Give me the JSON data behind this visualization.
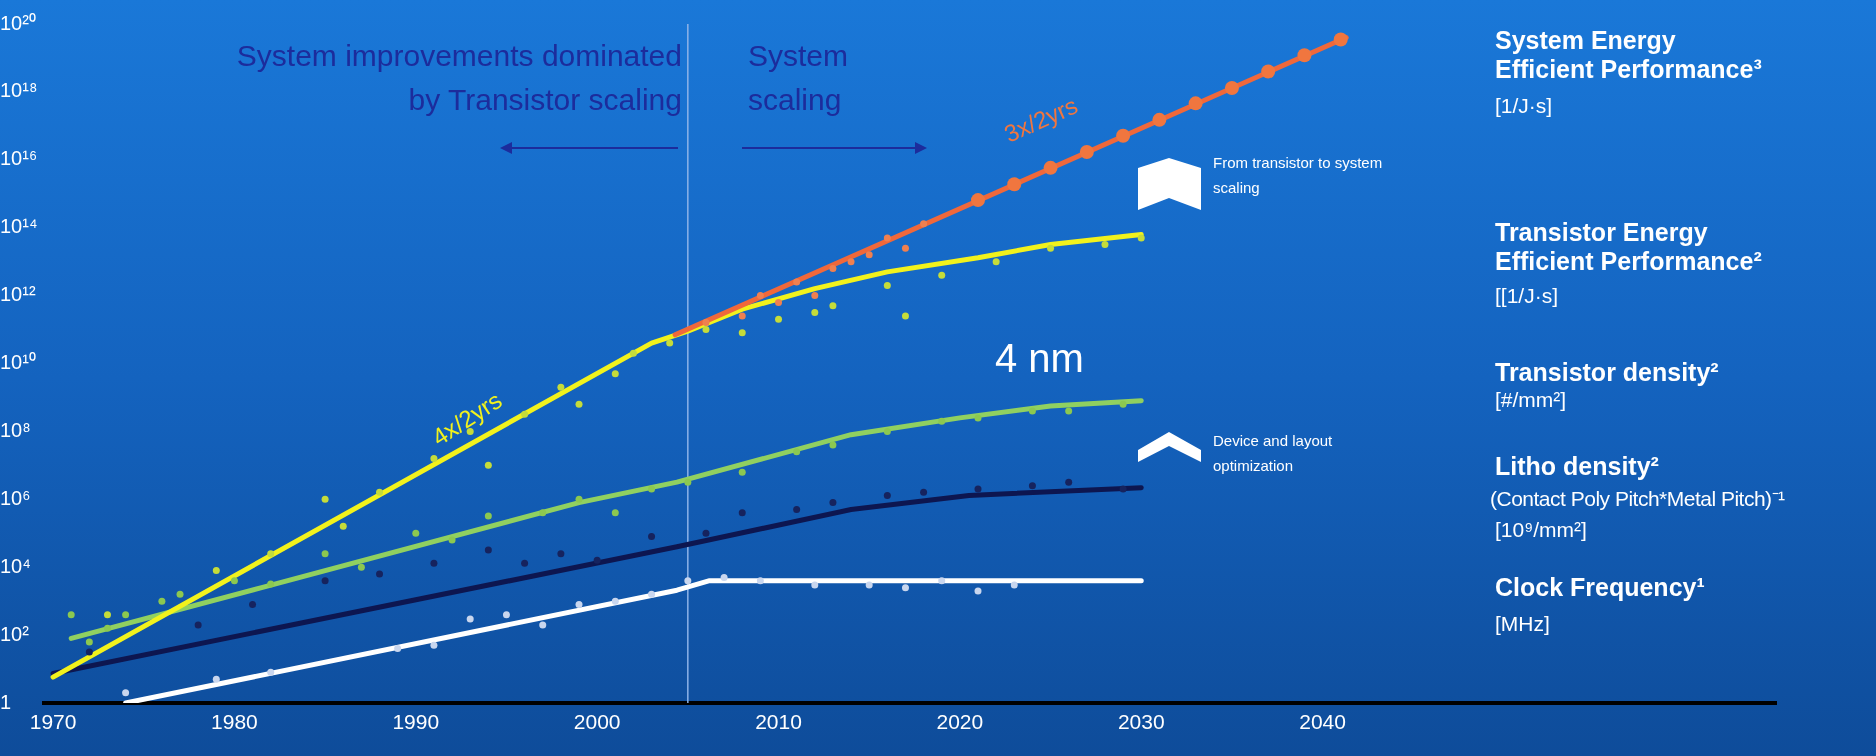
{
  "chart_data": {
    "type": "line",
    "log": "y",
    "xlim": [
      1969.5,
      2065
    ],
    "xticks": [
      1970,
      1980,
      1990,
      2000,
      2010,
      2020,
      2030,
      2040
    ],
    "ylim": [
      1,
      1e+20
    ],
    "yticks": [
      1,
      {
        "value": 100.0,
        "label": "10²"
      },
      {
        "value": 10000.0,
        "label": "10⁴"
      },
      {
        "value": 1000000.0,
        "label": "10⁶"
      },
      {
        "value": 100000000.0,
        "label": "10⁸"
      },
      {
        "value": 10000000000.0,
        "label": "10¹⁰"
      },
      {
        "value": 1000000000000.0,
        "label": "10¹²"
      },
      {
        "value": 100000000000000.0,
        "label": "10¹⁴"
      },
      {
        "value": 1e+16,
        "label": "10¹⁶"
      },
      {
        "value": 1e+18,
        "label": "10¹⁸"
      },
      {
        "value": 1e+20,
        "label": "10²⁰"
      }
    ],
    "series": [
      {
        "type": "scatter",
        "marker": "circle",
        "color": "#c5dc3a",
        "x": [
          1973,
          1979,
          1982,
          1985,
          1986,
          1988,
          1991,
          1993,
          1994,
          1996,
          1998,
          1999,
          2001,
          2002,
          2004,
          2006,
          2008,
          2010,
          2012,
          2013,
          2016,
          2017,
          2019,
          2022,
          2025,
          2028,
          2030
        ],
        "values": [
          400,
          8000,
          25000,
          1000000.0,
          160000.0,
          1600000.0,
          16000000.0,
          100000000.0,
          10000000.0,
          320000000.0,
          2000000000.0,
          630000000.0,
          5000000000.0,
          20000000000.0,
          40000000000.0,
          100000000000.0,
          80000000000.0,
          200000000000.0,
          320000000000.0,
          500000000000.0,
          2000000000000.0,
          250000000000.0,
          4000000000000.0,
          10000000000000.0,
          25000000000000.0,
          32000000000000.0,
          50000000000000.0
        ]
      },
      {
        "type": "scatter",
        "marker": "circle",
        "color": "#f08050",
        "x": [
          2006,
          2008,
          2009,
          2010,
          2011,
          2012,
          2013,
          2014,
          2015,
          2016,
          2017,
          2018
        ],
        "values": [
          160000000000.0,
          250000000000.0,
          1000000000000.0,
          630000000000.0,
          2500000000000.0,
          1000000000000.0,
          6300000000000.0,
          10000000000000.0,
          16000000000000.0,
          50000000000000.0,
          25000000000000.0,
          130000000000000.0
        ]
      },
      {
        "type": "scatter",
        "marker": "circle",
        "color": "#8cc850",
        "x": [
          1971,
          1972,
          1973,
          1974,
          1976,
          1977,
          1980,
          1982,
          1985,
          1987,
          1990,
          1992,
          1994,
          1997,
          1999,
          2001,
          2003,
          2005,
          2008,
          2011,
          2013,
          2016,
          2019,
          2021,
          2024,
          2026,
          2029
        ],
        "values": [
          400,
          63,
          160,
          400,
          1000,
          1600,
          4000,
          3200,
          25000,
          10000,
          100000.0,
          63000,
          320000.0,
          400000.0,
          1000000.0,
          400000.0,
          2000000.0,
          3200000.0,
          6300000.0,
          25000000.0,
          40000000.0,
          100000000.0,
          200000000.0,
          250000000.0,
          400000000.0,
          400000000.0,
          630000000.0
        ]
      },
      {
        "type": "scatter",
        "marker": "circle",
        "color": "#16235e",
        "x": [
          1972,
          1978,
          1981,
          1985,
          1988,
          1991,
          1994,
          1996,
          1998,
          2000,
          2003,
          2006,
          2008,
          2011,
          2013,
          2016,
          2018,
          2021,
          2024,
          2026,
          2029
        ],
        "values": [
          32,
          200,
          800,
          4000,
          6300,
          13000,
          32000,
          13000,
          25000,
          16000,
          80000,
          100000.0,
          400000.0,
          500000.0,
          800000.0,
          1300000.0,
          1600000.0,
          2000000.0,
          2500000.0,
          3200000.0,
          2000000.0
        ]
      },
      {
        "type": "scatter",
        "marker": "circle",
        "color": "#c9d6ee",
        "x": [
          1974,
          1979,
          1982,
          1989,
          1991,
          1993,
          1995,
          1997,
          1999,
          2001,
          2003,
          2005,
          2007,
          2009,
          2012,
          2015,
          2017,
          2019,
          2021,
          2023
        ],
        "values": [
          2,
          5,
          8,
          40,
          50,
          300,
          400,
          200,
          800,
          1000,
          1600,
          4000,
          5000,
          4000,
          3000,
          3000,
          2500,
          4000,
          2000,
          3000
        ]
      },
      {
        "name": "Clock Frequency¹",
        "marker": "none",
        "color": "#ffffff",
        "x": [
          1974,
          2004.4,
          2006.2,
          2030
        ],
        "values": [
          1,
          2100,
          4000,
          4000
        ]
      },
      {
        "name": "Litho density²",
        "marker": "none",
        "color": "#0d1650",
        "x": [
          1970,
          2004.4,
          2014,
          2020.5,
          2030
        ],
        "values": [
          7.4,
          40000,
          500000.0,
          1300000.0,
          2200000.0
        ]
      },
      {
        "name": "Transistor density²",
        "marker": "none",
        "color": "#90d060",
        "x": [
          1971,
          1981.5,
          1999,
          2004.4,
          2014,
          2020,
          2025,
          2030
        ],
        "values": [
          80,
          2500,
          800000.0,
          3200000.0,
          80000000.0,
          250000000.0,
          560000000.0,
          800000000.0
        ]
      },
      {
        "name": "Transistor Energy Efficient Performance²",
        "marker": "none",
        "color": "#f2f21c",
        "x": [
          1970,
          2003,
          2005,
          2008,
          2012,
          2016,
          2021,
          2025,
          2030
        ],
        "values": [
          5.8,
          40000000000.0,
          90000000000.0,
          400000000000.0,
          1600000000000.0,
          5000000000000.0,
          13000000000000.0,
          32000000000000.0,
          63000000000000.0
        ]
      },
      {
        "name": "System Energy Efficient Performance³",
        "marker": "none",
        "color": "#f0683a",
        "x": [
          2004.3,
          2041.3
        ],
        "values": [
          70000000000.0,
          4e+19
        ]
      },
      {
        "type": "scatter",
        "marker": "circle",
        "color": "#f0763f",
        "x": [
          2021,
          2023,
          2025,
          2027,
          2029,
          2031,
          2033,
          2035,
          2037,
          2039,
          2041
        ],
        "values": [
          650000000000000.0,
          1900000000000000.0,
          5800000000000000.0,
          1.7e+16,
          5.1e+16,
          1.5e+17,
          4.6e+17,
          1.3e+18,
          4e+18,
          1.2e+19,
          3.5e+19
        ]
      }
    ],
    "ref_lines": [
      {
        "axis": "x",
        "value": 2005,
        "color": "#8fb3e8"
      }
    ],
    "annotations": [
      "System improvements dominated by Transistor scaling",
      "System scaling",
      "From transistor to system scaling",
      "Device and layout optimization",
      "4 nm",
      "[1/J·s]",
      "[[1/J·s]",
      "[#/mm²]",
      "(Contact Poly Pitch*Metal Pitch)⁻¹",
      "[10⁹/mm²]",
      "[MHz]",
      "3x/2yrs",
      "4x/2yrs"
    ]
  }
}
